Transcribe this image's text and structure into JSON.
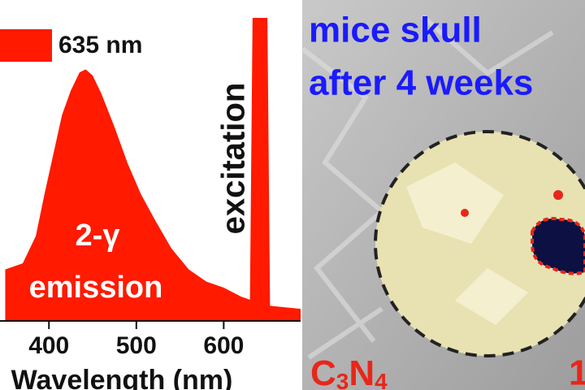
{
  "chart_data": {
    "type": "area",
    "x": [
      350,
      370,
      385,
      395,
      405,
      415,
      425,
      435,
      442,
      450,
      460,
      475,
      490,
      505,
      520,
      540,
      560,
      580,
      600,
      620,
      630,
      633,
      650,
      653,
      688
    ],
    "series": [
      {
        "name": "635 nm",
        "color": "#ff1a00",
        "values": [
          0.17,
          0.19,
          0.28,
          0.42,
          0.55,
          0.68,
          0.76,
          0.82,
          0.83,
          0.81,
          0.75,
          0.64,
          0.52,
          0.42,
          0.34,
          0.24,
          0.17,
          0.13,
          0.11,
          0.08,
          0.07,
          1.0,
          1.0,
          0.05,
          0.04
        ]
      }
    ],
    "xlim": [
      344,
      688
    ],
    "ylim": [
      0,
      1
    ],
    "xticks": [
      400,
      500,
      600
    ],
    "x_label": "Wavelength (nm)",
    "annotations": [
      "excitation",
      "2-γ",
      "emission"
    ]
  },
  "image_panel": {
    "lines": [
      "mice skull",
      "after 4 weeks"
    ],
    "label_parts": [
      "C",
      "3",
      "N",
      "4"
    ],
    "second_label": "1"
  }
}
